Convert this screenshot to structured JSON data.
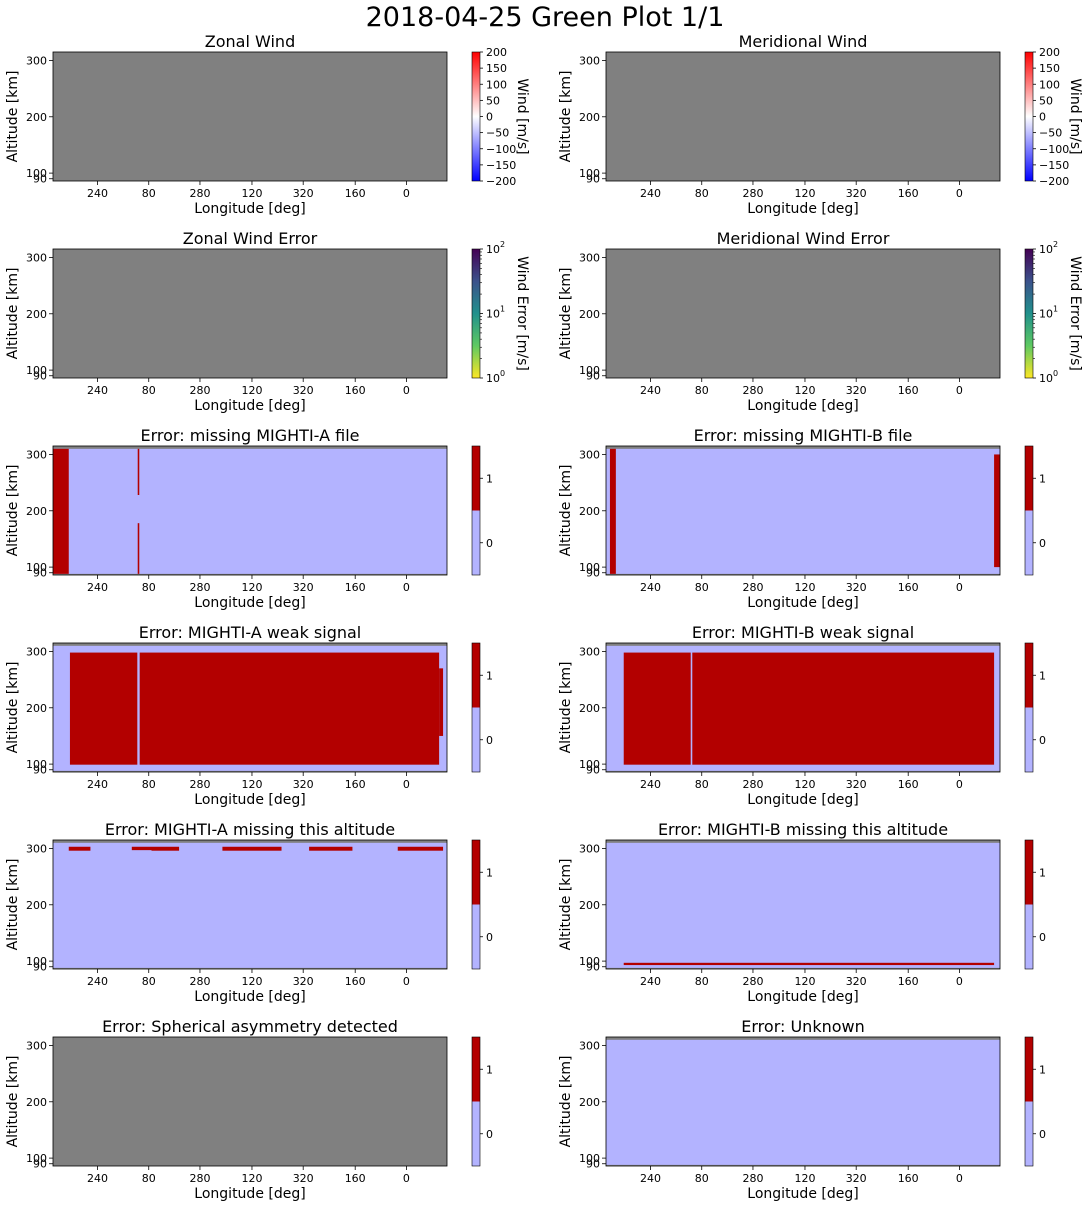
{
  "suptitle": "2018-04-25 Green Plot 1/1",
  "common": {
    "xlabel": "Longitude [deg]",
    "ylabel": "Altitude [km]",
    "xticks": [
      "240",
      "80",
      "280",
      "120",
      "320",
      "160",
      "0"
    ],
    "yticks": [
      "90",
      "100",
      "200",
      "300"
    ]
  },
  "chart_data": [
    {
      "type": "heatmap",
      "id": "zonal-wind",
      "title": "Zonal Wind",
      "xlabel": "Longitude [deg]",
      "ylabel": "Altitude [km]",
      "colorbar": {
        "kind": "diverging",
        "label": "Wind [m/s]",
        "ticks": [
          "200",
          "150",
          "100",
          "50",
          "0",
          "−50",
          "−100",
          "−150",
          "−200"
        ],
        "range": [
          -200,
          200
        ]
      },
      "background": "#808080",
      "regions": []
    },
    {
      "type": "heatmap",
      "id": "meridional-wind",
      "title": "Meridional Wind",
      "xlabel": "Longitude [deg]",
      "ylabel": "Altitude [km]",
      "colorbar": {
        "kind": "diverging",
        "label": "Wind [m/s]",
        "ticks": [
          "200",
          "150",
          "100",
          "50",
          "0",
          "−50",
          "−100",
          "−150",
          "−200"
        ],
        "range": [
          -200,
          200
        ]
      },
      "background": "#808080",
      "regions": []
    },
    {
      "type": "heatmap",
      "id": "zonal-wind-error",
      "title": "Zonal Wind Error",
      "xlabel": "Longitude [deg]",
      "ylabel": "Altitude [km]",
      "colorbar": {
        "kind": "log",
        "label": "Wind Error [m/s]",
        "ticks": [
          "10^2",
          "10^1",
          "10^0"
        ],
        "range": [
          1,
          100
        ]
      },
      "background": "#808080",
      "regions": []
    },
    {
      "type": "heatmap",
      "id": "meridional-wind-error",
      "title": "Meridional Wind Error",
      "xlabel": "Longitude [deg]",
      "ylabel": "Altitude [km]",
      "colorbar": {
        "kind": "log",
        "label": "Wind Error [m/s]",
        "ticks": [
          "10^2",
          "10^1",
          "10^0"
        ],
        "range": [
          1,
          100
        ]
      },
      "background": "#808080",
      "regions": []
    },
    {
      "type": "heatmap",
      "id": "missing-mighti-a-file",
      "title": "Error: missing MIGHTI-A file",
      "xlabel": "Longitude [deg]",
      "ylabel": "Altitude [km]",
      "colorbar": {
        "kind": "binary",
        "label": "",
        "ticks": [
          "1",
          "0"
        ],
        "range": [
          0,
          1
        ]
      },
      "background": "#b3b3ff",
      "regions": [
        {
          "value": 1,
          "x": [
            0.0,
            0.04
          ],
          "alt": [
            88,
            310
          ]
        },
        {
          "value": 1,
          "x": [
            0.215,
            0.219
          ],
          "alt": [
            228,
            310
          ]
        },
        {
          "value": 1,
          "x": [
            0.215,
            0.219
          ],
          "alt": [
            88,
            178
          ]
        }
      ]
    },
    {
      "type": "heatmap",
      "id": "missing-mighti-b-file",
      "title": "Error: missing MIGHTI-B file",
      "xlabel": "Longitude [deg]",
      "ylabel": "Altitude [km]",
      "colorbar": {
        "kind": "binary",
        "label": "",
        "ticks": [
          "1",
          "0"
        ],
        "range": [
          0,
          1
        ]
      },
      "background": "#b3b3ff",
      "regions": [
        {
          "value": 1,
          "x": [
            0.01,
            0.025
          ],
          "alt": [
            88,
            310
          ]
        },
        {
          "value": 1,
          "x": [
            0.985,
            1.0
          ],
          "alt": [
            100,
            300
          ]
        }
      ]
    },
    {
      "type": "heatmap",
      "id": "mighti-a-weak-signal",
      "title": "Error: MIGHTI-A weak signal",
      "xlabel": "Longitude [deg]",
      "ylabel": "Altitude [km]",
      "colorbar": {
        "kind": "binary",
        "label": "",
        "ticks": [
          "1",
          "0"
        ],
        "range": [
          0,
          1
        ]
      },
      "background": "#b3b3ff",
      "regions": [
        {
          "value": 1,
          "x": [
            0.043,
            0.214
          ],
          "alt": [
            99,
            298
          ]
        },
        {
          "value": 1,
          "x": [
            0.22,
            0.98
          ],
          "alt": [
            99,
            298
          ]
        },
        {
          "value": 1,
          "x": [
            0.98,
            0.99
          ],
          "alt": [
            150,
            270
          ]
        }
      ]
    },
    {
      "type": "heatmap",
      "id": "mighti-b-weak-signal",
      "title": "Error: MIGHTI-B weak signal",
      "xlabel": "Longitude [deg]",
      "ylabel": "Altitude [km]",
      "colorbar": {
        "kind": "binary",
        "label": "",
        "ticks": [
          "1",
          "0"
        ],
        "range": [
          0,
          1
        ]
      },
      "background": "#b3b3ff",
      "regions": [
        {
          "value": 1,
          "x": [
            0.045,
            0.215
          ],
          "alt": [
            99,
            298
          ]
        },
        {
          "value": 1,
          "x": [
            0.219,
            0.985
          ],
          "alt": [
            99,
            298
          ]
        }
      ]
    },
    {
      "type": "heatmap",
      "id": "mighti-a-missing-altitude",
      "title": "Error: MIGHTI-A missing this altitude",
      "xlabel": "Longitude [deg]",
      "ylabel": "Altitude [km]",
      "colorbar": {
        "kind": "binary",
        "label": "",
        "ticks": [
          "1",
          "0"
        ],
        "range": [
          0,
          1
        ]
      },
      "background": "#b3b3ff",
      "regions": [
        {
          "value": 1,
          "x": [
            0.04,
            0.095
          ],
          "alt": [
            296,
            303
          ]
        },
        {
          "value": 1,
          "x": [
            0.2,
            0.25
          ],
          "alt": [
            297,
            303
          ]
        },
        {
          "value": 1,
          "x": [
            0.25,
            0.32
          ],
          "alt": [
            296,
            303
          ]
        },
        {
          "value": 1,
          "x": [
            0.43,
            0.58
          ],
          "alt": [
            296,
            303
          ]
        },
        {
          "value": 1,
          "x": [
            0.65,
            0.76
          ],
          "alt": [
            296,
            303
          ]
        },
        {
          "value": 1,
          "x": [
            0.875,
            0.99
          ],
          "alt": [
            296,
            303
          ]
        }
      ]
    },
    {
      "type": "heatmap",
      "id": "mighti-b-missing-altitude",
      "title": "Error: MIGHTI-B missing this altitude",
      "xlabel": "Longitude [deg]",
      "ylabel": "Altitude [km]",
      "colorbar": {
        "kind": "binary",
        "label": "",
        "ticks": [
          "1",
          "0"
        ],
        "range": [
          0,
          1
        ]
      },
      "background": "#b3b3ff",
      "regions": [
        {
          "value": 1,
          "x": [
            0.045,
            0.985
          ],
          "alt": [
            93,
            97
          ]
        }
      ]
    },
    {
      "type": "heatmap",
      "id": "spherical-asymmetry",
      "title": "Error: Spherical asymmetry detected",
      "xlabel": "Longitude [deg]",
      "ylabel": "Altitude [km]",
      "colorbar": {
        "kind": "binary",
        "label": "",
        "ticks": [
          "1",
          "0"
        ],
        "range": [
          0,
          1
        ]
      },
      "background": "#808080",
      "regions": []
    },
    {
      "type": "heatmap",
      "id": "unknown",
      "title": "Error: Unknown",
      "xlabel": "Longitude [deg]",
      "ylabel": "Altitude [km]",
      "colorbar": {
        "kind": "binary",
        "label": "",
        "ticks": [
          "1",
          "0"
        ],
        "range": [
          0,
          1
        ]
      },
      "background": "#b3b3ff",
      "regions": []
    }
  ]
}
